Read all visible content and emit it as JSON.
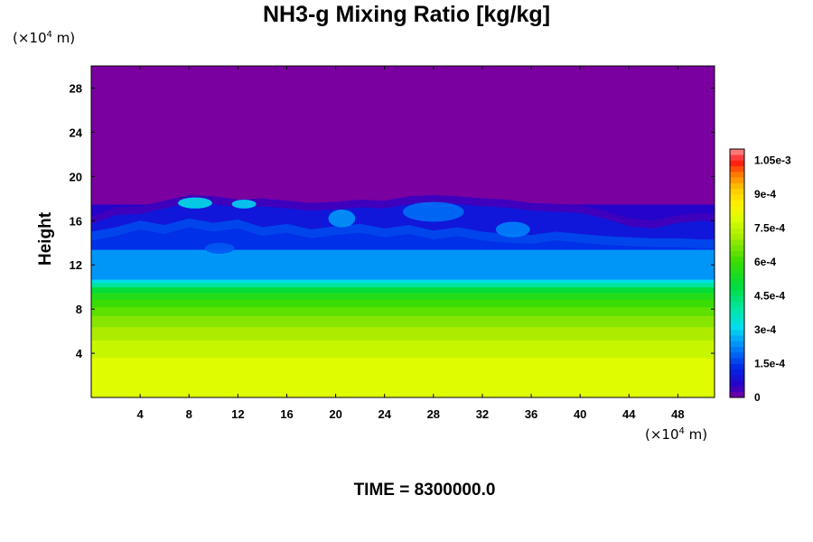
{
  "chart_data": {
    "type": "heatmap",
    "title": "NH3-g Mixing Ratio [kg/kg]",
    "ylabel": "Height",
    "xlabel": "",
    "x_unit": {
      "prefix": "(×10",
      "exp": "4",
      "suffix": " m)"
    },
    "y_unit": {
      "prefix": "(×10",
      "exp": "4",
      "suffix": " m)"
    },
    "x_ticks": [
      4,
      8,
      12,
      16,
      20,
      24,
      28,
      32,
      36,
      40,
      44,
      48
    ],
    "y_ticks": [
      4,
      8,
      12,
      16,
      20,
      24,
      28
    ],
    "xlim": [
      0,
      51
    ],
    "ylim": [
      0,
      30
    ],
    "layers": [
      {
        "y0": 0,
        "y1": 3.6,
        "value": 0.0008
      },
      {
        "y0": 3.6,
        "y1": 5.2,
        "value": 0.00076
      },
      {
        "y0": 5.2,
        "y1": 6.4,
        "value": 0.00072
      },
      {
        "y0": 6.4,
        "y1": 7.4,
        "value": 0.00068
      },
      {
        "y0": 7.4,
        "y1": 8.2,
        "value": 0.00064
      },
      {
        "y0": 8.2,
        "y1": 8.9,
        "value": 0.0006
      },
      {
        "y0": 8.9,
        "y1": 9.5,
        "value": 0.00056
      },
      {
        "y0": 9.5,
        "y1": 10.0,
        "value": 0.0005
      },
      {
        "y0": 10.0,
        "y1": 10.4,
        "value": 0.0004
      },
      {
        "y0": 10.4,
        "y1": 10.7,
        "value": 0.00032
      },
      {
        "y0": 10.7,
        "y1": 13.4,
        "value": 0.00024
      },
      {
        "y0": 13.4,
        "y1": 15.5,
        "value": 0.00014
      },
      {
        "y0": 15.5,
        "y1": 17.5,
        "value": 6e-05
      },
      {
        "y0": 17.5,
        "y1": 30,
        "value": 0.0
      }
    ],
    "cloud_top": [
      [
        0,
        16.4
      ],
      [
        2,
        17.2
      ],
      [
        4,
        17.3
      ],
      [
        6,
        17.8
      ],
      [
        8,
        18.3
      ],
      [
        10,
        18.2
      ],
      [
        12,
        17.9
      ],
      [
        14,
        18.0
      ],
      [
        16,
        17.8
      ],
      [
        18,
        17.6
      ],
      [
        20,
        17.7
      ],
      [
        22,
        17.9
      ],
      [
        24,
        17.8
      ],
      [
        26,
        18.2
      ],
      [
        28,
        18.3
      ],
      [
        30,
        18.2
      ],
      [
        32,
        18.0
      ],
      [
        34,
        17.9
      ],
      [
        36,
        17.6
      ],
      [
        38,
        17.5
      ],
      [
        40,
        17.4
      ],
      [
        42,
        16.9
      ],
      [
        44,
        16.2
      ],
      [
        46,
        16.0
      ],
      [
        48,
        16.5
      ],
      [
        50,
        16.7
      ],
      [
        51,
        16.6
      ]
    ],
    "cloud_base_blue": [
      [
        0,
        14.2
      ],
      [
        2,
        14.6
      ],
      [
        4,
        15.2
      ],
      [
        6,
        14.8
      ],
      [
        8,
        15.4
      ],
      [
        10,
        15.0
      ],
      [
        12,
        15.3
      ],
      [
        14,
        14.6
      ],
      [
        16,
        14.9
      ],
      [
        18,
        14.4
      ],
      [
        20,
        14.7
      ],
      [
        22,
        14.9
      ],
      [
        24,
        14.5
      ],
      [
        26,
        14.8
      ],
      [
        28,
        14.3
      ],
      [
        30,
        14.6
      ],
      [
        32,
        14.2
      ],
      [
        34,
        14.0
      ],
      [
        36,
        13.9
      ],
      [
        38,
        14.2
      ],
      [
        40,
        14.0
      ],
      [
        42,
        13.8
      ],
      [
        44,
        13.7
      ],
      [
        46,
        13.6
      ],
      [
        48,
        13.6
      ],
      [
        50,
        13.5
      ],
      [
        51,
        13.5
      ]
    ],
    "bright_patches": [
      {
        "x": 8.5,
        "y": 17.6,
        "rx": 1.4,
        "ry": 0.5,
        "value": 0.00032
      },
      {
        "x": 12.5,
        "y": 17.5,
        "rx": 1.0,
        "ry": 0.4,
        "value": 0.0003
      },
      {
        "x": 20.5,
        "y": 16.2,
        "rx": 1.1,
        "ry": 0.8,
        "value": 0.00024
      },
      {
        "x": 34.5,
        "y": 15.2,
        "rx": 1.4,
        "ry": 0.7,
        "value": 0.00022
      },
      {
        "x": 28.0,
        "y": 16.8,
        "rx": 2.5,
        "ry": 0.9,
        "value": 0.0002
      },
      {
        "x": 10.5,
        "y": 13.5,
        "rx": 1.2,
        "ry": 0.5,
        "value": 0.00018
      }
    ],
    "colorbar": {
      "min": 0,
      "max": 0.0011,
      "tick_values": [
        0,
        0.00015,
        0.0003,
        0.00045,
        0.0006,
        0.00075,
        0.0009,
        0.00105
      ],
      "tick_labels": [
        "0",
        "1.5e-4",
        "3e-4",
        "4.5e-4",
        "6e-4",
        "7.5e-4",
        "9e-4",
        "1.05e-3"
      ]
    },
    "annotation": "TIME = 8300000.0"
  }
}
